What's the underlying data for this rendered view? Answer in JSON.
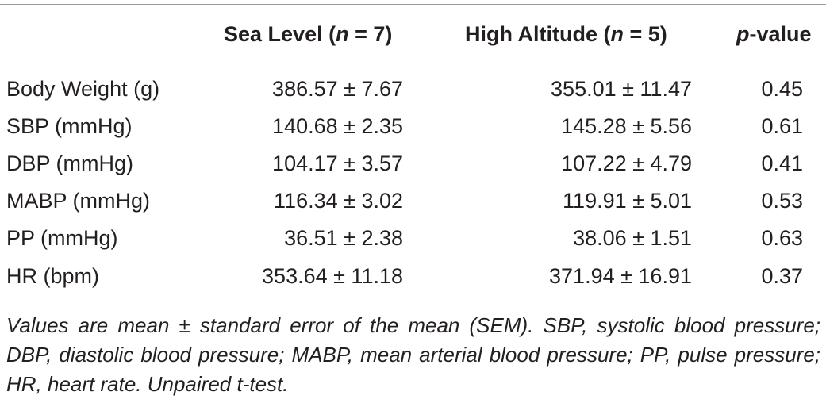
{
  "table": {
    "header": {
      "sea_level": "Sea Level",
      "sea_level_n": "n",
      "sea_level_count": " = 7)",
      "high_altitude": "High Altitude",
      "high_altitude_n": "n",
      "high_altitude_count": " = 5)",
      "p_value_p": "p",
      "p_value_rest": "-value"
    },
    "rows": [
      {
        "label": "Body Weight (g)",
        "sea": "386.57 ± 7.67",
        "high": "355.01 ± 11.47",
        "p": "0.45"
      },
      {
        "label": "SBP (mmHg)",
        "sea": "140.68 ± 2.35",
        "high": "145.28 ± 5.56",
        "p": "0.61"
      },
      {
        "label": "DBP (mmHg)",
        "sea": "104.17 ± 3.57",
        "high": "107.22 ± 4.79",
        "p": "0.41"
      },
      {
        "label": "MABP (mmHg)",
        "sea": "116.34 ± 3.02",
        "high": "119.91 ± 5.01",
        "p": "0.53"
      },
      {
        "label": "PP (mmHg)",
        "sea": "36.51 ± 2.38",
        "high": "38.06 ± 1.51",
        "p": "0.63"
      },
      {
        "label": "HR (bpm)",
        "sea": "353.64 ± 11.18",
        "high": "371.94 ± 16.91",
        "p": "0.37"
      }
    ],
    "footnote": "Values are mean ± standard error of the mean (SEM). SBP, systolic blood pressure; DBP, diastolic blood pressure; MABP, mean arterial blood pressure; PP, pulse pressure; HR, heart rate. Unpaired t-test."
  }
}
